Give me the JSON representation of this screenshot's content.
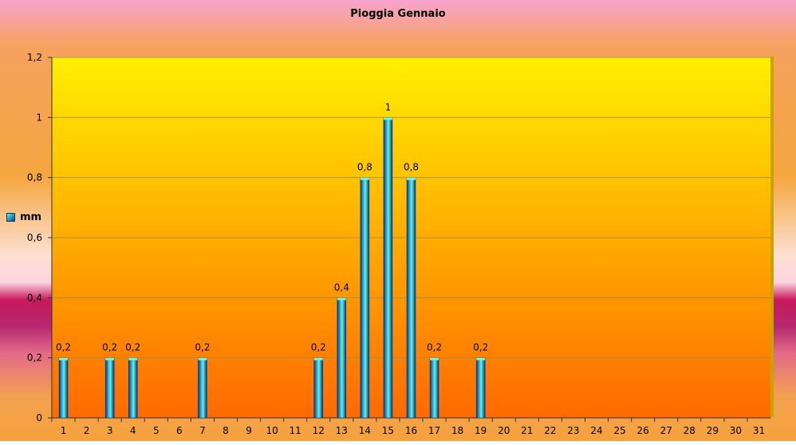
{
  "colors": {
    "bg_top": "#f7a3c9",
    "bg_mid": "#f4a13f",
    "bg_band": "#c8195d",
    "plot_top": "#ffef00",
    "plot_bottom": "#ff6d00",
    "bar_light": "#58e6c6",
    "bar_mid": "#1a9ac0",
    "bar_dark": "#0c2f8e",
    "grid": "#8a8a55"
  },
  "chart_data": {
    "type": "bar",
    "title": "Pioggia Gennaio",
    "xlabel": "",
    "ylabel": "",
    "legend": {
      "position": "left",
      "entries": [
        "mm"
      ]
    },
    "grid": true,
    "ylim": [
      0,
      1.2
    ],
    "y_ticks": [
      "0",
      "0,2",
      "0,4",
      "0,6",
      "0,8",
      "1",
      "1,2"
    ],
    "categories": [
      "1",
      "2",
      "3",
      "4",
      "5",
      "6",
      "7",
      "8",
      "9",
      "10",
      "11",
      "12",
      "13",
      "14",
      "15",
      "16",
      "17",
      "18",
      "19",
      "20",
      "21",
      "22",
      "23",
      "24",
      "25",
      "26",
      "27",
      "28",
      "29",
      "30",
      "31"
    ],
    "series": [
      {
        "name": "mm",
        "values": [
          0.2,
          0,
          0.2,
          0.2,
          0,
          0,
          0.2,
          0,
          0,
          0,
          0,
          0.2,
          0.4,
          0.8,
          1,
          0.8,
          0.2,
          0,
          0.2,
          0,
          0,
          0,
          0,
          0,
          0,
          0,
          0,
          0,
          0,
          0,
          0
        ],
        "labels": [
          "0,2",
          "",
          "0,2",
          "0,2",
          "",
          "",
          "0,2",
          "",
          "",
          "",
          "",
          "0,2",
          "0,4",
          "0,8",
          "1",
          "0,8",
          "0,2",
          "",
          "0,2",
          "",
          "",
          "",
          "",
          "",
          "",
          "",
          "",
          "",
          "",
          "",
          ""
        ]
      }
    ]
  }
}
